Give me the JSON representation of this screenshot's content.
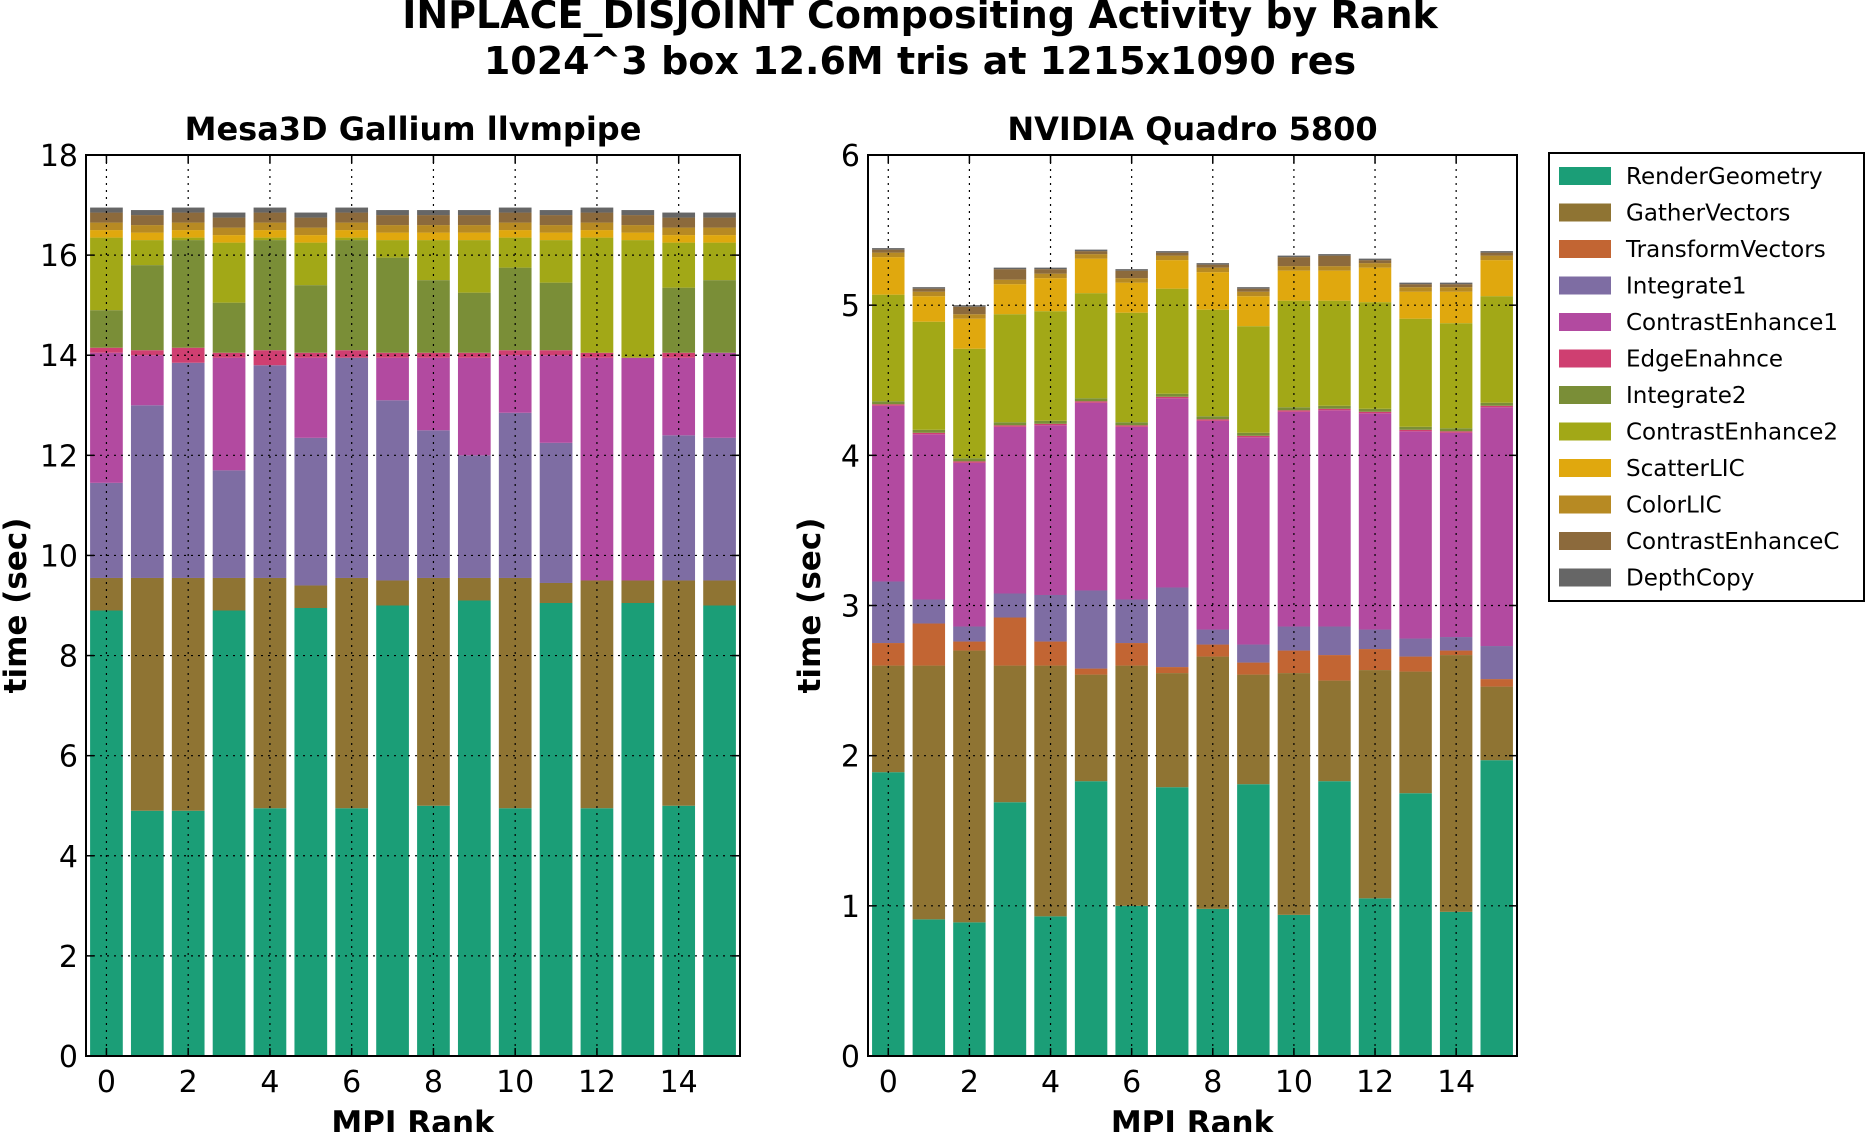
{
  "figure": {
    "title_line1": "INPLACE_DISJOINT Compositing Activity by Rank",
    "title_line2": "1024^3 box 12.6M tris at 1215x1090 res"
  },
  "legend": {
    "placement": "right, outside",
    "entries": [
      {
        "name": "RenderGeometry",
        "color": "#1b9e77"
      },
      {
        "name": "GatherVectors",
        "color": "#8f7433"
      },
      {
        "name": "TransformVectors",
        "color": "#c26533"
      },
      {
        "name": "Integrate1",
        "color": "#7e6da3"
      },
      {
        "name": "ContrastEnhance1",
        "color": "#b24aa0"
      },
      {
        "name": "EdgeEnahnce",
        "color": "#cf3f71"
      },
      {
        "name": "Integrate2",
        "color": "#7a8e37"
      },
      {
        "name": "ContrastEnhance2",
        "color": "#a2a817"
      },
      {
        "name": "ScatterLIC",
        "color": "#e0a80e"
      },
      {
        "name": "ColorLIC",
        "color": "#b78a23"
      },
      {
        "name": "ContrastEnhanceC",
        "color": "#8c6a3c"
      },
      {
        "name": "DepthCopy",
        "color": "#666666"
      }
    ]
  },
  "chart_data": [
    {
      "type": "bar",
      "stacked": true,
      "title": "Mesa3D Gallium llvmpipe",
      "xlabel": "MPI Rank",
      "ylabel": "time (sec)",
      "x": [
        0,
        1,
        2,
        3,
        4,
        5,
        6,
        7,
        8,
        9,
        10,
        11,
        12,
        13,
        14,
        15
      ],
      "xlim": [
        -0.5,
        15.5
      ],
      "ylim": [
        0,
        18
      ],
      "xticks": [
        0,
        2,
        4,
        6,
        8,
        10,
        12,
        14
      ],
      "yticks": [
        0,
        2,
        4,
        6,
        8,
        10,
        12,
        14,
        16,
        18
      ],
      "grid": "dotted",
      "series": [
        {
          "name": "RenderGeometry",
          "values": [
            8.9,
            4.9,
            4.9,
            8.9,
            4.95,
            8.95,
            4.95,
            9.0,
            5.0,
            9.1,
            4.95,
            9.05,
            4.95,
            9.05,
            5.0,
            9.0
          ]
        },
        {
          "name": "GatherVectors",
          "values": [
            0.65,
            4.65,
            4.65,
            0.65,
            4.6,
            0.45,
            4.6,
            0.5,
            4.55,
            0.45,
            4.6,
            0.4,
            4.55,
            0.45,
            4.5,
            0.5
          ]
        },
        {
          "name": "TransformVectors",
          "values": [
            0.0,
            0.0,
            0.0,
            0.0,
            0.0,
            0.0,
            0.0,
            0.0,
            0.0,
            0.0,
            0.0,
            0.0,
            0.0,
            0.0,
            0.0,
            0.0
          ]
        },
        {
          "name": "Integrate1",
          "values": [
            1.9,
            3.45,
            4.3,
            2.15,
            4.25,
            2.95,
            4.4,
            3.6,
            2.95,
            2.45,
            3.3,
            2.8,
            0.0,
            0.0,
            2.9,
            2.85
          ]
        },
        {
          "name": "ContrastEnhance1",
          "values": [
            2.6,
            1.0,
            0.0,
            2.25,
            0.0,
            1.6,
            0.0,
            0.85,
            1.45,
            1.95,
            1.15,
            1.75,
            4.45,
            4.45,
            1.55,
            1.7
          ]
        },
        {
          "name": "EdgeEnahnce",
          "values": [
            0.1,
            0.1,
            0.3,
            0.1,
            0.3,
            0.1,
            0.15,
            0.1,
            0.1,
            0.1,
            0.1,
            0.1,
            0.1,
            0.0,
            0.1,
            0.0
          ]
        },
        {
          "name": "Integrate2",
          "values": [
            0.75,
            1.7,
            2.15,
            1.0,
            2.2,
            1.35,
            2.2,
            1.9,
            1.45,
            1.2,
            1.65,
            1.35,
            0.0,
            0.0,
            1.3,
            1.45
          ]
        },
        {
          "name": "ContrastEnhance2",
          "values": [
            1.45,
            0.5,
            0.05,
            1.2,
            0.05,
            0.85,
            0.05,
            0.35,
            0.8,
            1.05,
            0.6,
            0.85,
            2.3,
            2.35,
            0.9,
            0.75
          ]
        },
        {
          "name": "ScatterLIC",
          "values": [
            0.15,
            0.15,
            0.15,
            0.15,
            0.15,
            0.15,
            0.15,
            0.15,
            0.15,
            0.15,
            0.15,
            0.15,
            0.15,
            0.15,
            0.15,
            0.15
          ]
        },
        {
          "name": "ColorLIC",
          "values": [
            0.15,
            0.15,
            0.15,
            0.15,
            0.15,
            0.15,
            0.15,
            0.15,
            0.15,
            0.15,
            0.15,
            0.15,
            0.15,
            0.15,
            0.15,
            0.15
          ]
        },
        {
          "name": "ContrastEnhanceC",
          "values": [
            0.2,
            0.2,
            0.2,
            0.2,
            0.2,
            0.2,
            0.2,
            0.2,
            0.2,
            0.2,
            0.2,
            0.2,
            0.2,
            0.2,
            0.2,
            0.2
          ]
        },
        {
          "name": "DepthCopy",
          "values": [
            0.1,
            0.1,
            0.1,
            0.1,
            0.1,
            0.1,
            0.1,
            0.1,
            0.1,
            0.1,
            0.1,
            0.1,
            0.1,
            0.1,
            0.1,
            0.1
          ]
        }
      ]
    },
    {
      "type": "bar",
      "stacked": true,
      "title": "NVIDIA Quadro 5800",
      "xlabel": "MPI Rank",
      "ylabel": "time (sec)",
      "x": [
        0,
        1,
        2,
        3,
        4,
        5,
        6,
        7,
        8,
        9,
        10,
        11,
        12,
        13,
        14,
        15
      ],
      "xlim": [
        -0.5,
        15.5
      ],
      "ylim": [
        0,
        6
      ],
      "xticks": [
        0,
        2,
        4,
        6,
        8,
        10,
        12,
        14
      ],
      "yticks": [
        0,
        1,
        2,
        3,
        4,
        5,
        6
      ],
      "grid": "dotted",
      "series": [
        {
          "name": "RenderGeometry",
          "values": [
            1.89,
            0.91,
            0.89,
            1.69,
            0.93,
            1.83,
            1.0,
            1.79,
            0.98,
            1.81,
            0.94,
            1.83,
            1.05,
            1.75,
            0.96,
            1.97
          ]
        },
        {
          "name": "GatherVectors",
          "values": [
            0.71,
            1.69,
            1.81,
            0.91,
            1.67,
            0.71,
            1.6,
            0.76,
            1.68,
            0.73,
            1.61,
            0.67,
            1.52,
            0.81,
            1.71,
            0.49
          ]
        },
        {
          "name": "TransformVectors",
          "values": [
            0.15,
            0.28,
            0.06,
            0.32,
            0.16,
            0.04,
            0.15,
            0.04,
            0.08,
            0.08,
            0.15,
            0.17,
            0.14,
            0.1,
            0.03,
            0.05
          ]
        },
        {
          "name": "Integrate1",
          "values": [
            0.41,
            0.16,
            0.1,
            0.16,
            0.31,
            0.52,
            0.29,
            0.53,
            0.1,
            0.12,
            0.16,
            0.19,
            0.13,
            0.12,
            0.09,
            0.22
          ]
        },
        {
          "name": "ContrastEnhance1",
          "values": [
            1.17,
            1.1,
            1.09,
            1.11,
            1.13,
            1.25,
            1.15,
            1.26,
            1.39,
            1.38,
            1.43,
            1.44,
            1.44,
            1.38,
            1.36,
            1.59
          ]
        },
        {
          "name": "EdgeEnahnce",
          "values": [
            0.01,
            0.01,
            0.01,
            0.01,
            0.01,
            0.01,
            0.01,
            0.01,
            0.01,
            0.01,
            0.01,
            0.01,
            0.01,
            0.01,
            0.01,
            0.01
          ]
        },
        {
          "name": "Integrate2",
          "values": [
            0.02,
            0.02,
            0.02,
            0.02,
            0.02,
            0.02,
            0.02,
            0.02,
            0.02,
            0.02,
            0.02,
            0.02,
            0.02,
            0.02,
            0.02,
            0.02
          ]
        },
        {
          "name": "ContrastEnhance2",
          "values": [
            0.71,
            0.72,
            0.73,
            0.72,
            0.73,
            0.7,
            0.73,
            0.7,
            0.71,
            0.71,
            0.71,
            0.7,
            0.71,
            0.72,
            0.7,
            0.71
          ]
        },
        {
          "name": "ScatterLIC",
          "values": [
            0.25,
            0.17,
            0.2,
            0.2,
            0.22,
            0.23,
            0.2,
            0.19,
            0.25,
            0.2,
            0.2,
            0.2,
            0.23,
            0.18,
            0.21,
            0.24
          ]
        },
        {
          "name": "ColorLIC",
          "values": [
            0.03,
            0.03,
            0.03,
            0.03,
            0.03,
            0.03,
            0.03,
            0.03,
            0.03,
            0.03,
            0.03,
            0.03,
            0.03,
            0.03,
            0.03,
            0.03
          ]
        },
        {
          "name": "ContrastEnhanceC",
          "values": [
            0.02,
            0.02,
            0.05,
            0.07,
            0.03,
            0.02,
            0.05,
            0.02,
            0.02,
            0.02,
            0.06,
            0.07,
            0.02,
            0.02,
            0.02,
            0.02
          ]
        },
        {
          "name": "DepthCopy",
          "values": [
            0.01,
            0.01,
            0.01,
            0.01,
            0.01,
            0.01,
            0.01,
            0.01,
            0.01,
            0.01,
            0.01,
            0.01,
            0.01,
            0.01,
            0.01,
            0.01
          ]
        }
      ]
    }
  ]
}
